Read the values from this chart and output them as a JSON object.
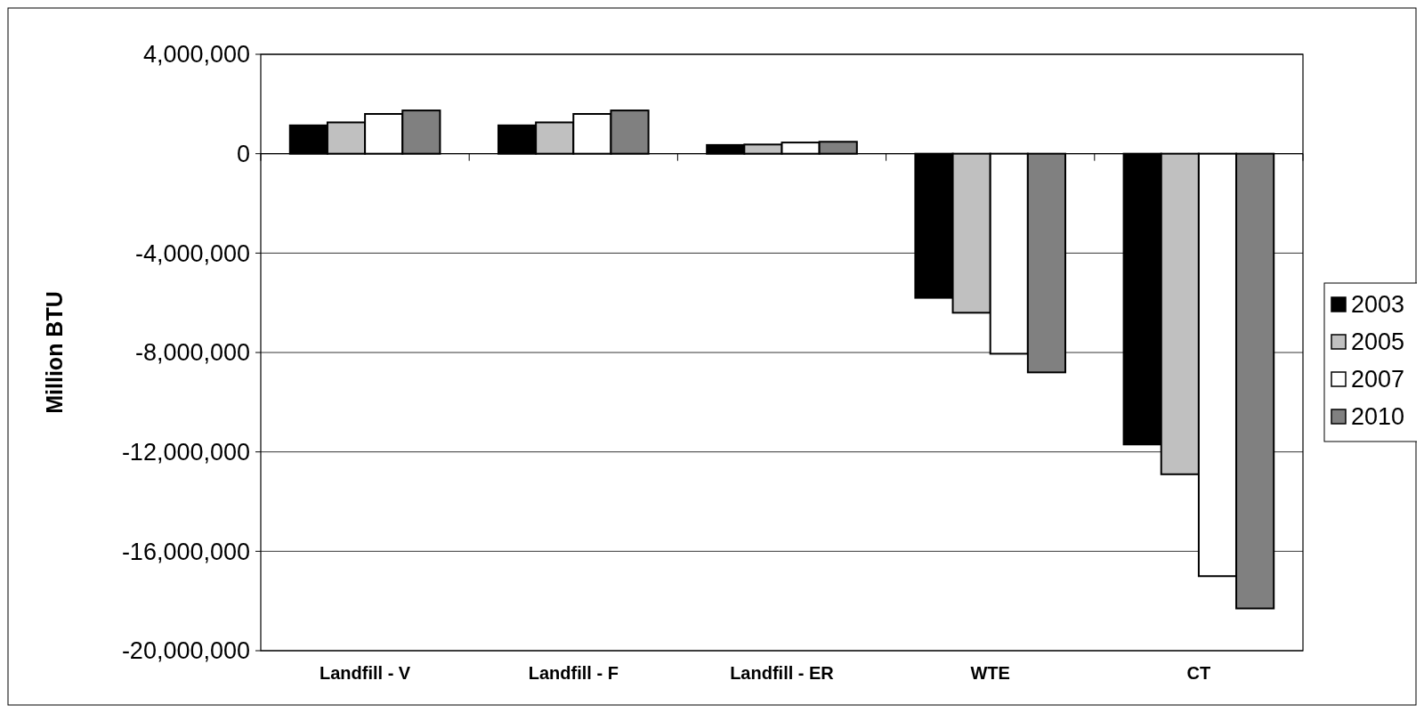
{
  "chart_data": {
    "type": "bar",
    "ylabel": "Million BTU",
    "categories": [
      "Landfill - V",
      "Landfill - F",
      "Landfill - ER",
      "WTE",
      "CT"
    ],
    "series": [
      {
        "name": "2003",
        "color": "#000000",
        "values": [
          1140000,
          1140000,
          350000,
          -5800000,
          -11700000
        ]
      },
      {
        "name": "2005",
        "color": "#c0c0c0",
        "values": [
          1260000,
          1260000,
          370000,
          -6400000,
          -12900000
        ]
      },
      {
        "name": "2007",
        "color": "#ffffff",
        "values": [
          1600000,
          1600000,
          450000,
          -8050000,
          -17000000
        ]
      },
      {
        "name": "2010",
        "color": "#808080",
        "values": [
          1740000,
          1740000,
          480000,
          -8800000,
          -18300000
        ]
      }
    ],
    "ylim": [
      -20000000,
      4000000
    ],
    "yticks": [
      {
        "value": 4000000,
        "label": "4,000,000"
      },
      {
        "value": 0,
        "label": "0"
      },
      {
        "value": -4000000,
        "label": "-4,000,000"
      },
      {
        "value": -8000000,
        "label": "-8,000,000"
      },
      {
        "value": -12000000,
        "label": "-12,000,000"
      },
      {
        "value": -16000000,
        "label": "-16,000,000"
      },
      {
        "value": -20000000,
        "label": "-20,000,000"
      }
    ],
    "grid": "y",
    "legend": "right"
  }
}
